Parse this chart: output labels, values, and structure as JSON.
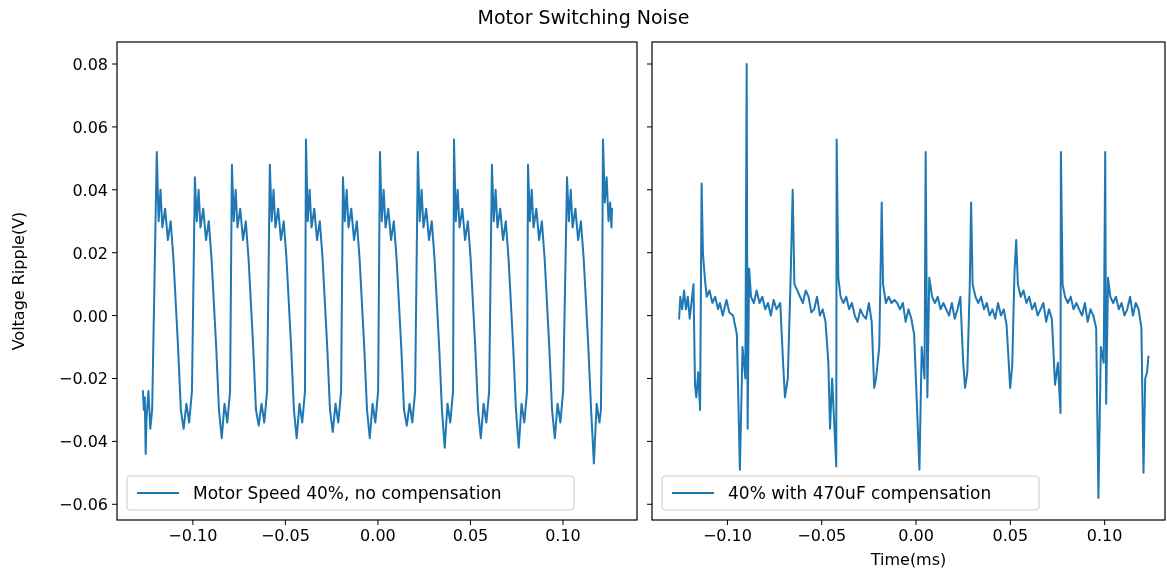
{
  "chart_data": [
    {
      "type": "line",
      "title": "Motor Switching Noise",
      "ylabel": "Voltage Ripple(V)",
      "legend": "bottom left",
      "line_style": "solid",
      "xlim": [
        -0.141,
        0.14
      ],
      "ylim": [
        -0.065,
        0.087
      ],
      "xticks": [
        {
          "value": -0.1,
          "label": "−0.10"
        },
        {
          "value": -0.05,
          "label": "−0.05"
        },
        {
          "value": 0,
          "label": "0.00"
        },
        {
          "value": 0.05,
          "label": "0.05"
        },
        {
          "value": 0.1,
          "label": "0.10"
        }
      ],
      "yticks": [
        {
          "value": -0.06,
          "label": "−0.06"
        },
        {
          "value": -0.04,
          "label": "−0.04"
        },
        {
          "value": -0.02,
          "label": "−0.02"
        },
        {
          "value": 0,
          "label": "0.00"
        },
        {
          "value": 0.02,
          "label": "0.02"
        },
        {
          "value": 0.04,
          "label": "0.04"
        },
        {
          "value": 0.06,
          "label": "0.06"
        },
        {
          "value": 0.08,
          "label": "0.08"
        }
      ],
      "x": [
        -0.127,
        -0.1265,
        -0.126,
        -0.1255,
        -0.125,
        -0.124,
        -0.123,
        -0.122,
        -0.1195,
        -0.1185,
        -0.1175,
        -0.1165,
        -0.115,
        -0.1135,
        -0.112,
        -0.1105,
        -0.108,
        -0.1065,
        -0.105,
        -0.1035,
        -0.102,
        -0.1005,
        -0.0989,
        -0.0979,
        -0.0969,
        -0.0959,
        -0.0944,
        -0.0929,
        -0.0914,
        -0.0899,
        -0.0874,
        -0.0859,
        -0.0844,
        -0.0829,
        -0.0814,
        -0.0799,
        -0.0789,
        -0.0779,
        -0.0769,
        -0.0759,
        -0.0744,
        -0.0729,
        -0.0714,
        -0.0699,
        -0.0674,
        -0.0659,
        -0.0644,
        -0.0629,
        -0.0614,
        -0.0599,
        -0.0584,
        -0.0574,
        -0.0564,
        -0.0554,
        -0.0539,
        -0.0524,
        -0.0509,
        -0.0494,
        -0.0469,
        -0.0454,
        -0.0439,
        -0.0424,
        -0.0409,
        -0.0394,
        -0.0389,
        -0.0379,
        -0.0369,
        -0.0359,
        -0.0344,
        -0.0329,
        -0.0314,
        -0.0299,
        -0.0274,
        -0.0259,
        -0.0244,
        -0.0229,
        -0.0214,
        -0.0199,
        -0.0189,
        -0.0179,
        -0.0169,
        -0.0159,
        -0.0144,
        -0.0129,
        -0.0114,
        -0.0099,
        -0.0074,
        -0.0059,
        -0.0044,
        -0.0029,
        -0.0014,
        0.0001,
        0.0011,
        0.0021,
        0.0031,
        0.0041,
        0.0056,
        0.0071,
        0.0086,
        0.0101,
        0.0126,
        0.0141,
        0.0156,
        0.0171,
        0.0186,
        0.0201,
        0.0216,
        0.0226,
        0.0236,
        0.0246,
        0.0261,
        0.0276,
        0.0291,
        0.0306,
        0.0331,
        0.0346,
        0.0361,
        0.0376,
        0.0391,
        0.0406,
        0.0411,
        0.0421,
        0.0431,
        0.0441,
        0.0456,
        0.0471,
        0.0486,
        0.0501,
        0.0526,
        0.0541,
        0.0556,
        0.0571,
        0.0586,
        0.0601,
        0.0616,
        0.0626,
        0.0636,
        0.0646,
        0.0661,
        0.0676,
        0.0691,
        0.0706,
        0.0731,
        0.0746,
        0.0761,
        0.0776,
        0.0791,
        0.0806,
        0.0811,
        0.0821,
        0.0831,
        0.0841,
        0.0856,
        0.0871,
        0.0886,
        0.0901,
        0.0926,
        0.0941,
        0.0956,
        0.0971,
        0.0986,
        0.1001,
        0.1022,
        0.1032,
        0.1042,
        0.1052,
        0.1067,
        0.1082,
        0.1097,
        0.1112,
        0.1137,
        0.1152,
        0.1167,
        0.1182,
        0.1197,
        0.1205,
        0.1212,
        0.1216,
        0.1226,
        0.1236,
        0.1246,
        0.1255,
        0.1262,
        0.1265
      ],
      "series": [
        {
          "name": "Motor Speed 40%, no compensation",
          "color": "#1f77b4",
          "values": [
            -0.024,
            -0.03,
            -0.026,
            -0.044,
            -0.032,
            -0.024,
            -0.036,
            -0.03,
            0.052,
            0.03,
            0.04,
            0.028,
            0.034,
            0.024,
            0.03,
            0.018,
            -0.01,
            -0.03,
            -0.036,
            -0.028,
            -0.034,
            -0.024,
            0.044,
            0.03,
            0.04,
            0.028,
            0.034,
            0.024,
            0.03,
            0.018,
            -0.01,
            -0.03,
            -0.039,
            -0.028,
            -0.034,
            -0.024,
            0.048,
            0.03,
            0.04,
            0.028,
            0.034,
            0.024,
            0.03,
            0.018,
            -0.01,
            -0.03,
            -0.035,
            -0.028,
            -0.034,
            -0.024,
            0.048,
            0.03,
            0.04,
            0.028,
            0.034,
            0.024,
            0.03,
            0.018,
            -0.01,
            -0.03,
            -0.039,
            -0.028,
            -0.034,
            -0.024,
            0.056,
            0.03,
            0.04,
            0.028,
            0.034,
            0.024,
            0.03,
            0.018,
            -0.01,
            -0.03,
            -0.037,
            -0.028,
            -0.034,
            -0.024,
            0.044,
            0.03,
            0.04,
            0.028,
            0.034,
            0.024,
            0.03,
            0.018,
            -0.01,
            -0.03,
            -0.039,
            -0.028,
            -0.034,
            -0.024,
            0.052,
            0.03,
            0.04,
            0.028,
            0.034,
            0.024,
            0.03,
            0.018,
            -0.01,
            -0.03,
            -0.035,
            -0.028,
            -0.034,
            -0.024,
            0.052,
            0.03,
            0.04,
            0.028,
            0.034,
            0.024,
            0.03,
            0.018,
            -0.01,
            -0.03,
            -0.042,
            -0.028,
            -0.034,
            -0.024,
            0.056,
            0.03,
            0.04,
            0.028,
            0.034,
            0.024,
            0.03,
            0.018,
            -0.01,
            -0.03,
            -0.039,
            -0.028,
            -0.034,
            -0.024,
            0.048,
            0.03,
            0.04,
            0.028,
            0.034,
            0.024,
            0.03,
            0.018,
            -0.01,
            -0.03,
            -0.042,
            -0.028,
            -0.034,
            -0.024,
            0.048,
            0.03,
            0.04,
            0.028,
            0.034,
            0.024,
            0.03,
            0.018,
            -0.01,
            -0.03,
            -0.039,
            -0.028,
            -0.034,
            -0.024,
            0.044,
            0.03,
            0.04,
            0.028,
            0.034,
            0.024,
            0.03,
            0.018,
            -0.01,
            -0.03,
            -0.047,
            -0.028,
            -0.034,
            -0.03,
            0.01,
            0.056,
            0.036,
            0.044,
            0.03,
            0.036,
            0.028,
            0.034
          ]
        }
      ]
    },
    {
      "type": "line",
      "xlabel": "Time(ms)",
      "legend": "bottom left",
      "line_style": "solid",
      "tick_labels": "x",
      "xlim": [
        -0.14,
        0.132
      ],
      "ylim": [
        -0.065,
        0.087
      ],
      "xticks": [
        {
          "value": -0.1,
          "label": "−0.10"
        },
        {
          "value": -0.05,
          "label": "−0.05"
        },
        {
          "value": 0,
          "label": "0.00"
        },
        {
          "value": 0.05,
          "label": "0.05"
        },
        {
          "value": 0.1,
          "label": "0.10"
        }
      ],
      "yticks": [
        {
          "value": -0.06,
          "label": null
        },
        {
          "value": -0.04,
          "label": null
        },
        {
          "value": -0.02,
          "label": null
        },
        {
          "value": 0,
          "label": null
        },
        {
          "value": 0.02,
          "label": null
        },
        {
          "value": 0.04,
          "label": null
        },
        {
          "value": 0.06,
          "label": null
        },
        {
          "value": 0.08,
          "label": null
        }
      ],
      "x": [
        -0.1256,
        -0.125,
        -0.124,
        -0.123,
        -0.122,
        -0.121,
        -0.12,
        -0.118,
        -0.1172,
        -0.1165,
        -0.1155,
        -0.1145,
        -0.1137,
        -0.113,
        -0.112,
        -0.111,
        -0.1095,
        -0.108,
        -0.1065,
        -0.105,
        -0.104,
        -0.1025,
        -0.1005,
        -0.099,
        -0.097,
        -0.095,
        -0.0934,
        -0.092,
        -0.0905,
        -0.0898,
        -0.0893,
        -0.0885,
        -0.0875,
        -0.086,
        -0.0845,
        -0.083,
        -0.0815,
        -0.08,
        -0.0785,
        -0.077,
        -0.0755,
        -0.074,
        -0.072,
        -0.0705,
        -0.0695,
        -0.068,
        -0.0665,
        -0.0654,
        -0.0645,
        -0.063,
        -0.0615,
        -0.06,
        -0.0585,
        -0.057,
        -0.0555,
        -0.054,
        -0.0525,
        -0.051,
        -0.0495,
        -0.048,
        -0.0465,
        -0.0456,
        -0.0445,
        -0.0423,
        -0.0421,
        -0.0412,
        -0.04,
        -0.0385,
        -0.037,
        -0.0355,
        -0.034,
        -0.0325,
        -0.031,
        -0.0295,
        -0.028,
        -0.0265,
        -0.025,
        -0.0235,
        -0.0222,
        -0.0212,
        -0.0195,
        -0.0182,
        -0.0175,
        -0.016,
        -0.0145,
        -0.013,
        -0.0115,
        -0.01,
        -0.0085,
        -0.007,
        -0.0055,
        -0.004,
        -0.0025,
        -0.001,
        0.0018,
        0.003,
        0.0045,
        0.0051,
        0.006,
        0.007,
        0.0085,
        0.01,
        0.0115,
        0.013,
        0.0145,
        0.016,
        0.0175,
        0.019,
        0.0205,
        0.022,
        0.0235,
        0.025,
        0.026,
        0.0272,
        0.0285,
        0.0292,
        0.03,
        0.0315,
        0.033,
        0.0345,
        0.036,
        0.0375,
        0.039,
        0.0405,
        0.042,
        0.0435,
        0.045,
        0.0465,
        0.048,
        0.0499,
        0.051,
        0.0522,
        0.0531,
        0.054,
        0.0555,
        0.057,
        0.0585,
        0.06,
        0.0615,
        0.063,
        0.0645,
        0.066,
        0.0675,
        0.069,
        0.0705,
        0.072,
        0.0737,
        0.0752,
        0.0766,
        0.0768,
        0.0777,
        0.079,
        0.0805,
        0.082,
        0.0835,
        0.085,
        0.0865,
        0.088,
        0.0895,
        0.091,
        0.0925,
        0.094,
        0.0955,
        0.0967,
        0.098,
        0.0995,
        0.1003,
        0.1008,
        0.1018,
        0.103,
        0.1045,
        0.106,
        0.1075,
        0.109,
        0.1105,
        0.112,
        0.1135,
        0.115,
        0.1165,
        0.118,
        0.1195,
        0.1206,
        0.1215,
        0.1225,
        0.1232
      ],
      "series": [
        {
          "name": "40% with 470uF compensation",
          "color": "#1f77b4",
          "values": [
            -0.001,
            0.006,
            0.002,
            0.008,
            0.002,
            0.006,
            -0.001,
            0.01,
            -0.022,
            -0.026,
            -0.018,
            -0.03,
            0.042,
            0.02,
            0.012,
            0.006,
            0.008,
            0.004,
            0.006,
            0.002,
            0.004,
            0.0,
            0.005,
            0.001,
            0.0,
            -0.006,
            -0.049,
            -0.01,
            -0.02,
            0.08,
            -0.036,
            0.015,
            0.006,
            0.004,
            0.008,
            0.004,
            0.006,
            0.002,
            0.004,
            0.0,
            0.005,
            0.002,
            0.004,
            -0.015,
            -0.026,
            -0.02,
            0.012,
            0.04,
            0.01,
            0.008,
            0.006,
            0.004,
            0.008,
            0.006,
            0.001,
            0.002,
            0.006,
            0.0,
            0.002,
            -0.002,
            -0.015,
            -0.036,
            -0.02,
            -0.048,
            0.056,
            0.012,
            0.006,
            0.004,
            0.006,
            0.002,
            0.004,
            0.0,
            -0.002,
            0.002,
            0.0,
            -0.001,
            0.004,
            -0.002,
            -0.023,
            -0.02,
            -0.01,
            0.036,
            0.01,
            0.004,
            0.006,
            0.004,
            0.005,
            0.004,
            0.002,
            0.004,
            -0.002,
            0.002,
            -0.001,
            -0.006,
            -0.049,
            -0.01,
            -0.02,
            0.052,
            -0.026,
            0.012,
            0.006,
            0.004,
            0.006,
            0.002,
            0.004,
            0.002,
            0.0,
            0.004,
            -0.001,
            0.002,
            0.006,
            -0.015,
            -0.023,
            -0.018,
            0.01,
            0.036,
            0.01,
            0.006,
            0.004,
            0.006,
            0.002,
            0.004,
            0.0,
            0.002,
            -0.001,
            0.004,
            0.0,
            0.002,
            -0.003,
            -0.023,
            -0.016,
            0.014,
            0.024,
            0.01,
            0.006,
            0.008,
            0.004,
            0.006,
            0.002,
            0.004,
            0.0,
            0.002,
            0.004,
            -0.002,
            0.002,
            -0.001,
            -0.022,
            -0.015,
            -0.031,
            0.052,
            0.01,
            0.006,
            0.004,
            0.006,
            0.002,
            0.004,
            0.002,
            0.0,
            0.004,
            -0.002,
            0.002,
            0.0,
            -0.004,
            -0.058,
            -0.01,
            -0.015,
            0.052,
            -0.028,
            0.012,
            0.006,
            0.004,
            0.006,
            0.002,
            0.004,
            0.0,
            0.002,
            0.006,
            0.0,
            0.004,
            0.002,
            -0.004,
            -0.05,
            -0.02,
            -0.018,
            -0.013
          ]
        }
      ]
    }
  ]
}
